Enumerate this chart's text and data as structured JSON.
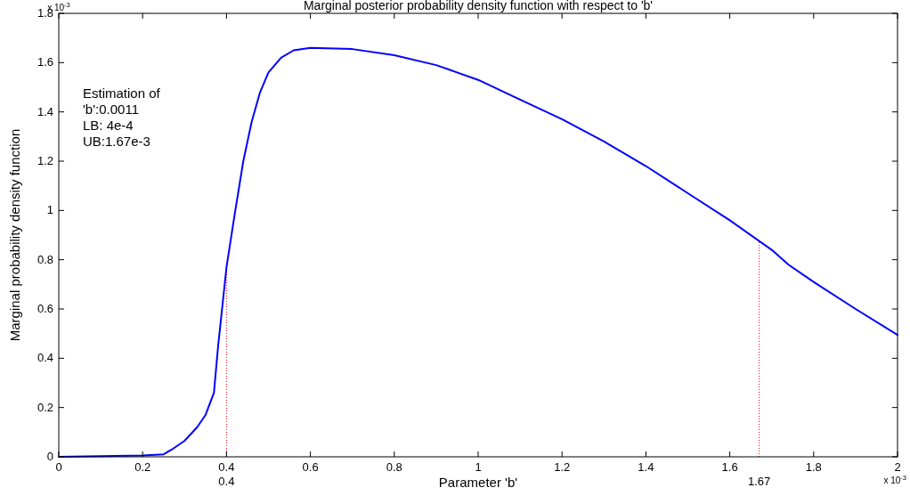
{
  "chart_data": {
    "type": "line",
    "title": "Marginal posterior probability density function with respect to 'b'",
    "xlabel": "Parameter 'b'",
    "ylabel": "Marginal probability density function",
    "x": [
      0,
      0.1,
      0.2,
      0.25,
      0.27,
      0.3,
      0.33,
      0.35,
      0.37,
      0.38,
      0.4,
      0.42,
      0.44,
      0.46,
      0.48,
      0.5,
      0.53,
      0.56,
      0.6,
      0.7,
      0.8,
      0.9,
      1.0,
      1.1,
      1.2,
      1.3,
      1.4,
      1.5,
      1.6,
      1.7,
      1.74,
      1.8,
      1.9,
      2.0
    ],
    "series": [
      {
        "color": "#0000ff",
        "values": [
          0,
          0.003,
          0.005,
          0.01,
          0.03,
          0.065,
          0.12,
          0.17,
          0.26,
          0.45,
          0.77,
          0.99,
          1.2,
          1.36,
          1.48,
          1.56,
          1.62,
          1.65,
          1.66,
          1.655,
          1.63,
          1.59,
          1.53,
          1.45,
          1.37,
          1.28,
          1.18,
          1.07,
          0.96,
          0.84,
          0.78,
          0.71,
          0.6,
          0.495
        ]
      }
    ],
    "xlim": [
      0,
      2
    ],
    "xticks": [
      0,
      0.2,
      0.4,
      0.6,
      0.8,
      1,
      1.2,
      1.4,
      1.6,
      1.8,
      2
    ],
    "ylim": [
      0,
      1.8
    ],
    "yticks": [
      0,
      0.2,
      0.4,
      0.6,
      0.8,
      1,
      1.2,
      1.4,
      1.6,
      1.8
    ],
    "ref_lines": [
      {
        "axis": "x",
        "value": 0.4,
        "label": "0.4",
        "color": "#ff0000",
        "line_style": "dotted"
      },
      {
        "axis": "x",
        "value": 1.67,
        "label": "1.67",
        "color": "#ff0000",
        "line_style": "dotted"
      }
    ],
    "annotations": [
      "Estimation of\n'b':0.0011\nLB: 4e-4\nUB:1.67e-3",
      "x 10$^{-3}$",
      "x 10$^{-3}$"
    ],
    "grid": false,
    "marker": "none",
    "line_style": "solid"
  }
}
